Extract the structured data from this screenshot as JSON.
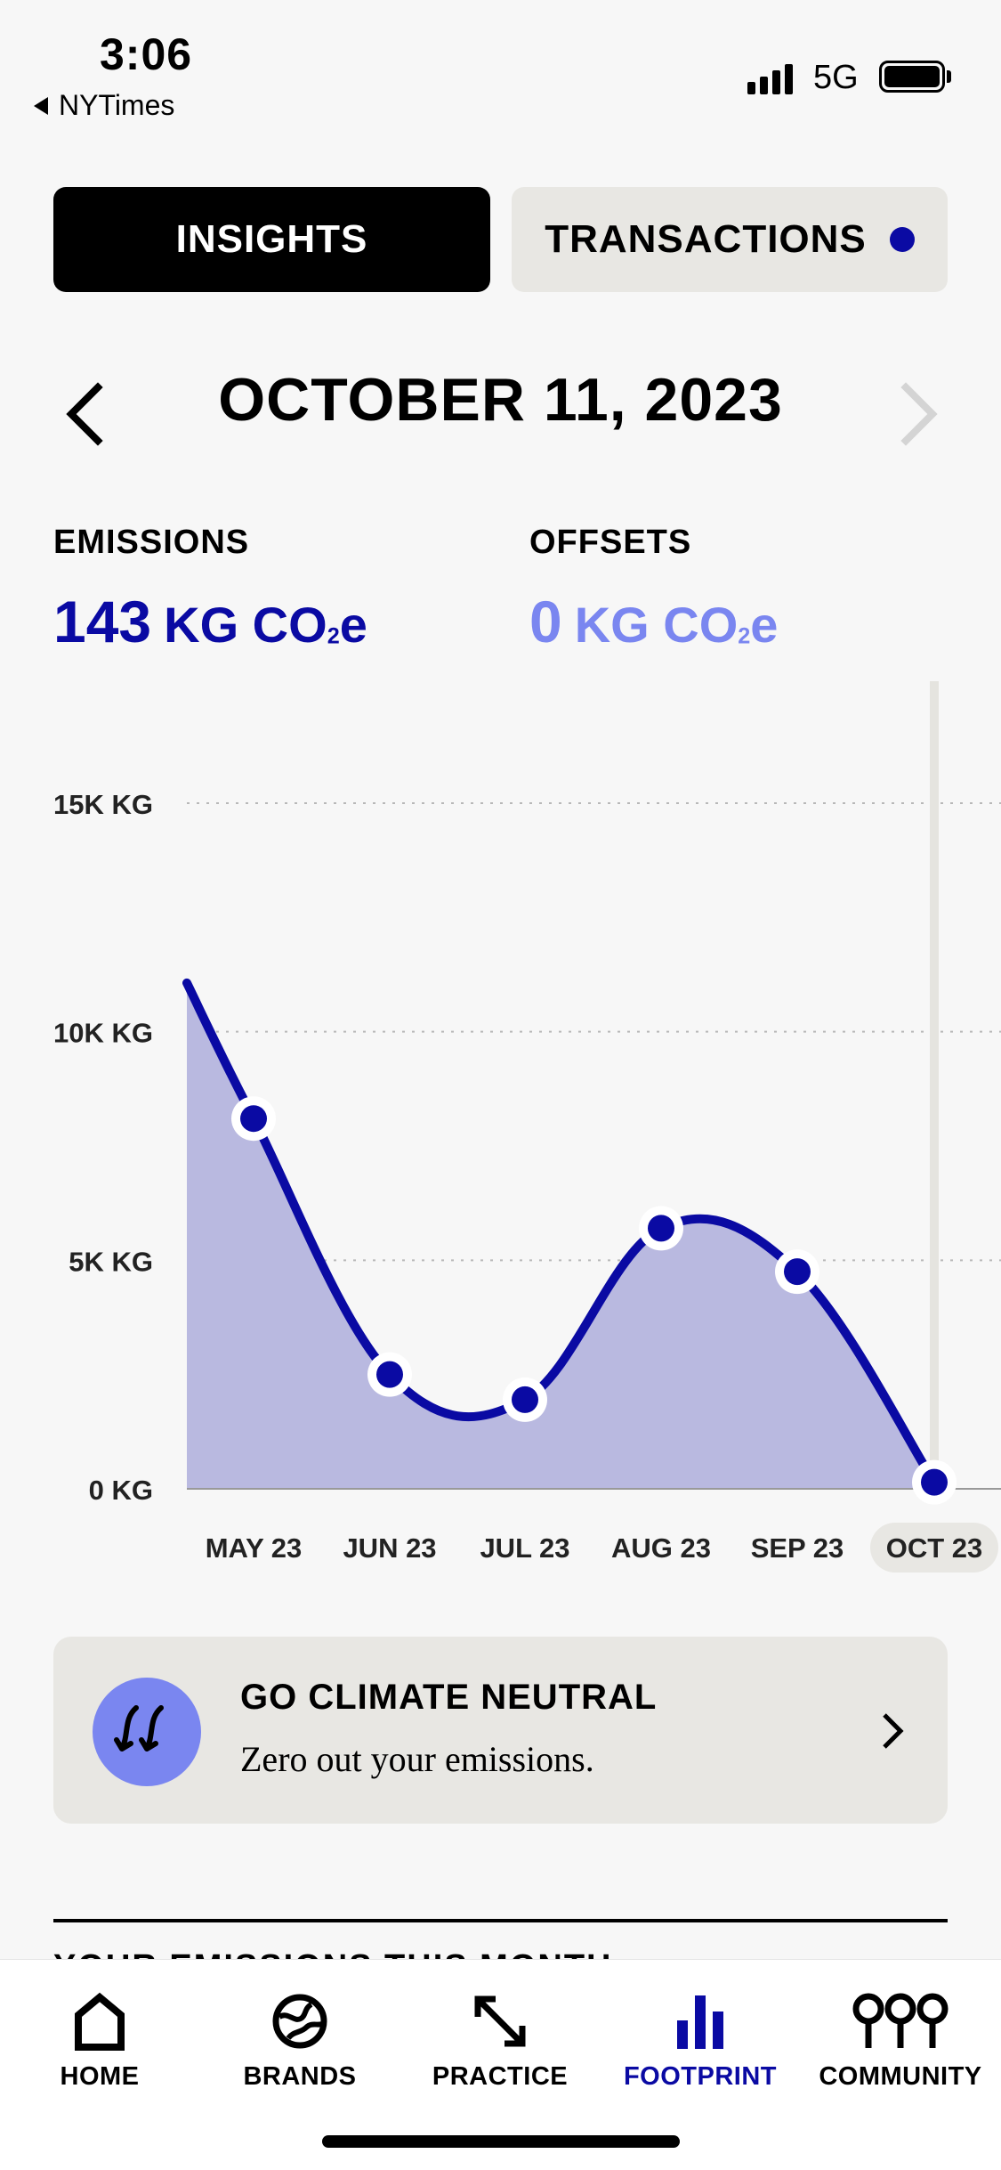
{
  "status_bar": {
    "time": "3:06",
    "back_app": "NYTimes",
    "network": "5G"
  },
  "segments": {
    "insights": "INSIGHTS",
    "transactions": "TRANSACTIONS",
    "selected": "insights",
    "transactions_badge_color": "#0a0aa3"
  },
  "date_nav": {
    "title": "OCTOBER 11, 2023",
    "prev_icon": "chevron-left-icon",
    "next_icon": "chevron-right-icon",
    "next_enabled": false
  },
  "metrics": {
    "emissions_label": "EMISSIONS",
    "emissions_value": "143",
    "emissions_unit": "KG CO",
    "emissions_unit_sub": "2",
    "emissions_unit_tail": "e",
    "offsets_label": "OFFSETS",
    "offsets_value": "0",
    "offsets_unit": "KG CO",
    "offsets_unit_sub": "2",
    "offsets_unit_tail": "e"
  },
  "chart_data": {
    "type": "area",
    "x": [
      "MAY 23",
      "JUN 23",
      "JUL 23",
      "AUG 23",
      "SEP 23",
      "OCT 23"
    ],
    "values": [
      8100,
      2500,
      1950,
      5700,
      4750,
      143
    ],
    "y_ticks": [
      "0 KG",
      "5K KG",
      "10K KG",
      "15K KG"
    ],
    "y_tick_values": [
      0,
      5000,
      10000,
      15000
    ],
    "ylim": [
      0,
      15000
    ],
    "selected_x": "OCT 23",
    "grid": true,
    "line_color": "#0a0aa3",
    "fill_color": "#b9b9e0"
  },
  "card": {
    "title": "GO CLIMATE NEUTRAL",
    "subtitle": "Zero out your emissions.",
    "icon": "climate-neutral-icon"
  },
  "section_peek": "YOUR EMISSIONS THIS MONTH",
  "tabbar": {
    "items": [
      {
        "label": "HOME",
        "icon": "home-icon"
      },
      {
        "label": "BRANDS",
        "icon": "globe-icon"
      },
      {
        "label": "PRACTICE",
        "icon": "arrows-icon"
      },
      {
        "label": "FOOTPRINT",
        "icon": "bar-chart-icon"
      },
      {
        "label": "COMMUNITY",
        "icon": "community-icon"
      }
    ],
    "active": "FOOTPRINT",
    "active_color": "#0a0aa3"
  }
}
